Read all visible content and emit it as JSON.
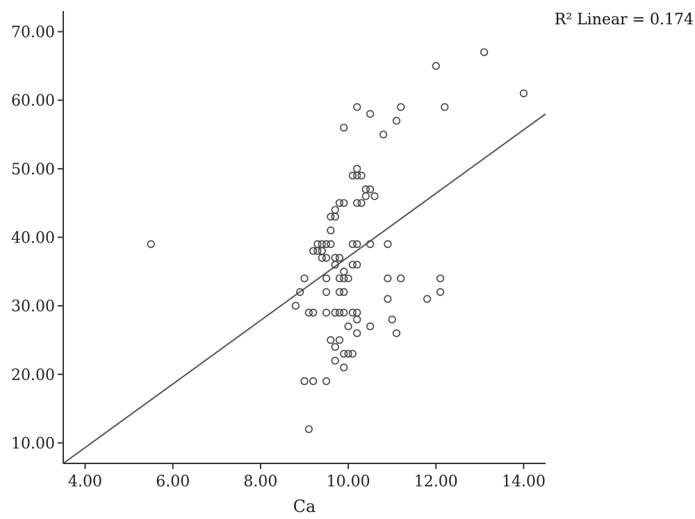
{
  "chart_data": {
    "type": "scatter",
    "title": "",
    "xlabel": "Ca",
    "ylabel": "",
    "xlim": [
      3.5,
      14.5
    ],
    "ylim": [
      7,
      73
    ],
    "x_ticks": [
      "4.00",
      "6.00",
      "8.00",
      "10.00",
      "12.00",
      "14.00"
    ],
    "y_ticks": [
      "10.00",
      "20.00",
      "30.00",
      "40.00",
      "50.00",
      "60.00",
      "70.00"
    ],
    "grid": false,
    "annotation": "R² Linear = 0.174",
    "fit_line": {
      "x": [
        3.5,
        14.5
      ],
      "y": [
        7,
        58
      ]
    },
    "points": [
      [
        5.5,
        39
      ],
      [
        8.8,
        30
      ],
      [
        8.9,
        32
      ],
      [
        9.0,
        34
      ],
      [
        9.0,
        19
      ],
      [
        9.1,
        29
      ],
      [
        9.1,
        12
      ],
      [
        9.2,
        29
      ],
      [
        9.2,
        19
      ],
      [
        9.2,
        38
      ],
      [
        9.3,
        38
      ],
      [
        9.3,
        39
      ],
      [
        9.4,
        38
      ],
      [
        9.4,
        37
      ],
      [
        9.4,
        39
      ],
      [
        9.5,
        39
      ],
      [
        9.5,
        37
      ],
      [
        9.5,
        34
      ],
      [
        9.5,
        32
      ],
      [
        9.5,
        29
      ],
      [
        9.5,
        19
      ],
      [
        9.6,
        39
      ],
      [
        9.6,
        41
      ],
      [
        9.6,
        43
      ],
      [
        9.6,
        25
      ],
      [
        9.7,
        43
      ],
      [
        9.7,
        44
      ],
      [
        9.7,
        37
      ],
      [
        9.7,
        36
      ],
      [
        9.7,
        29
      ],
      [
        9.7,
        24
      ],
      [
        9.7,
        22
      ],
      [
        9.8,
        45
      ],
      [
        9.8,
        37
      ],
      [
        9.8,
        34
      ],
      [
        9.8,
        32
      ],
      [
        9.8,
        29
      ],
      [
        9.8,
        25
      ],
      [
        9.9,
        56
      ],
      [
        9.9,
        45
      ],
      [
        9.9,
        35
      ],
      [
        9.9,
        34
      ],
      [
        9.9,
        32
      ],
      [
        9.9,
        29
      ],
      [
        9.9,
        23
      ],
      [
        9.9,
        21
      ],
      [
        10.0,
        34
      ],
      [
        10.0,
        27
      ],
      [
        10.0,
        23
      ],
      [
        10.1,
        49
      ],
      [
        10.1,
        39
      ],
      [
        10.1,
        36
      ],
      [
        10.1,
        29
      ],
      [
        10.1,
        23
      ],
      [
        10.2,
        59
      ],
      [
        10.2,
        50
      ],
      [
        10.2,
        49
      ],
      [
        10.2,
        45
      ],
      [
        10.2,
        39
      ],
      [
        10.2,
        36
      ],
      [
        10.2,
        29
      ],
      [
        10.2,
        28
      ],
      [
        10.2,
        26
      ],
      [
        10.3,
        49
      ],
      [
        10.3,
        45
      ],
      [
        10.4,
        47
      ],
      [
        10.4,
        46
      ],
      [
        10.5,
        58
      ],
      [
        10.5,
        47
      ],
      [
        10.5,
        39
      ],
      [
        10.5,
        27
      ],
      [
        10.6,
        46
      ],
      [
        10.8,
        55
      ],
      [
        10.9,
        39
      ],
      [
        10.9,
        34
      ],
      [
        10.9,
        31
      ],
      [
        11.0,
        28
      ],
      [
        11.1,
        57
      ],
      [
        11.1,
        26
      ],
      [
        11.2,
        59
      ],
      [
        11.2,
        34
      ],
      [
        11.8,
        31
      ],
      [
        12.0,
        65
      ],
      [
        12.1,
        34
      ],
      [
        12.1,
        32
      ],
      [
        12.2,
        59
      ],
      [
        13.1,
        67
      ],
      [
        14.0,
        61
      ]
    ]
  }
}
